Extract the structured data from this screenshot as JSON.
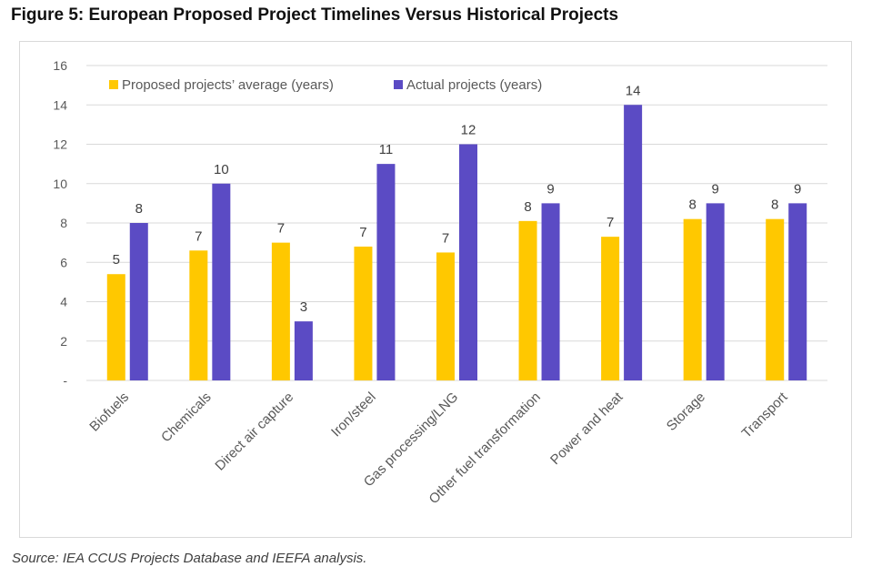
{
  "figure": {
    "title": "Figure 5: European Proposed Project Timelines Versus Historical Projects",
    "source": "Source: IEA CCUS Projects Database and IEEFA analysis."
  },
  "chart_data": {
    "type": "bar",
    "categories": [
      "Biofuels",
      "Chemicals",
      "Direct air capture",
      "Iron/steel",
      "Gas processing/LNG",
      "Other fuel transformation",
      "Power and heat",
      "Storage",
      "Transport"
    ],
    "series": [
      {
        "name": "Proposed projects’ average (years)",
        "color": "#FFC800",
        "values": [
          5.4,
          6.6,
          7.0,
          6.8,
          6.5,
          8.1,
          7.3,
          8.2,
          8.2
        ],
        "labels": [
          "5",
          "7",
          "7",
          "7",
          "7",
          "8",
          "7",
          "8",
          "8"
        ]
      },
      {
        "name": "Actual projects (years)",
        "color": "#5B4BC4",
        "values": [
          8,
          10,
          3,
          11,
          12,
          9,
          14,
          9,
          9
        ],
        "labels": [
          "8",
          "10",
          "3",
          "11",
          "12",
          "9",
          "14",
          "9",
          "9"
        ]
      }
    ],
    "ylim": [
      0,
      16
    ],
    "yticks": [
      0,
      2,
      4,
      6,
      8,
      10,
      12,
      14,
      16
    ],
    "ytick_labels": [
      "-",
      "2",
      "4",
      "6",
      "8",
      "10",
      "12",
      "14",
      "16"
    ],
    "xlabel": "",
    "ylabel": "",
    "grid": true,
    "legend": "top-left"
  }
}
